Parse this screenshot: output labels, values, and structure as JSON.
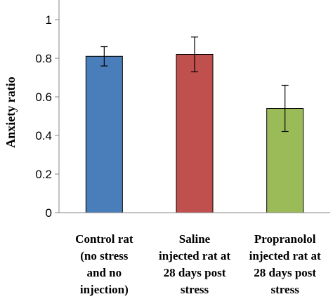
{
  "chart_data": {
    "type": "bar",
    "ylabel": "Anxiety ratio",
    "xlabel": "",
    "ylim": [
      0,
      1
    ],
    "yticks": [
      "0",
      "0.2",
      "0.4",
      "0.6",
      "0.8",
      "1"
    ],
    "grid": false,
    "categories": [
      [
        "Control rat",
        "(no stress",
        "and no",
        "injection)"
      ],
      [
        "Saline",
        "injected rat at",
        "28 days post",
        "stress"
      ],
      [
        "Propranolol",
        "injected rat at",
        "28 days post",
        "stress"
      ]
    ],
    "values": [
      0.81,
      0.82,
      0.54
    ],
    "errors": [
      0.05,
      0.09,
      0.12
    ],
    "colors": [
      "#4a7ebb",
      "#c0504d",
      "#9bbb59"
    ],
    "axis_color": "#868686",
    "bar_edge_color": "#000000"
  }
}
